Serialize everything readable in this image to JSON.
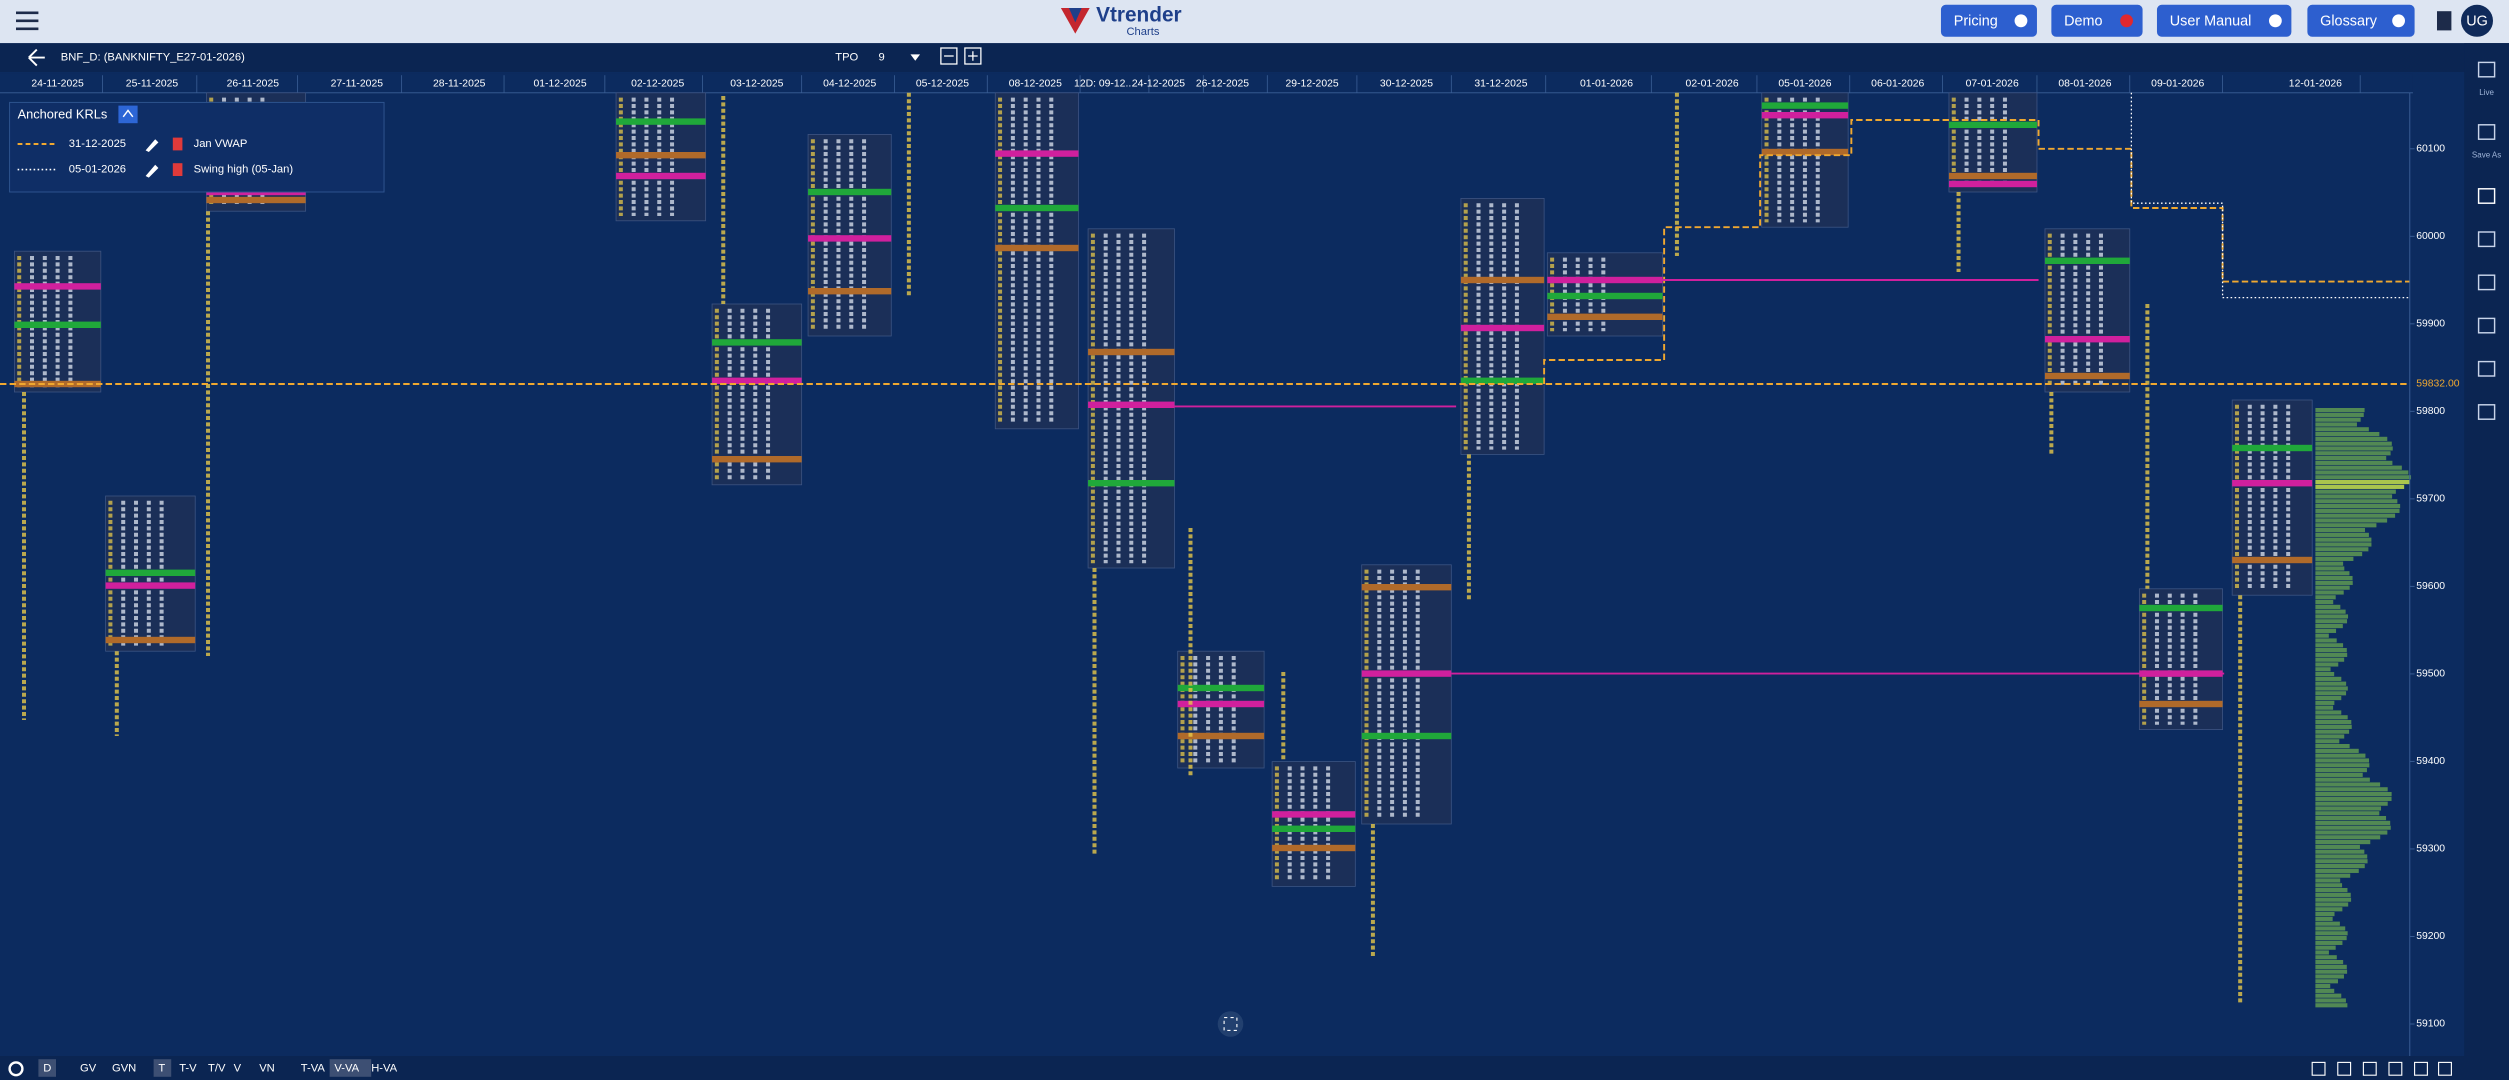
{
  "header": {
    "logo": "Vtrender",
    "logo_sub": "Charts",
    "buttons": [
      "Pricing",
      "Demo",
      "User Manual",
      "Glossary"
    ],
    "avatar": "UG"
  },
  "toolbar": {
    "symbol": "BNF_D: (BANKNIFTY_E27-01-2026)",
    "mode": "TPO",
    "size": "9"
  },
  "dates": [
    "24-11-2025",
    "25-11-2025",
    "26-11-2025",
    "27-11-2025",
    "28-11-2025",
    "01-12-2025",
    "02-12-2025",
    "03-12-2025",
    "04-12-2025",
    "05-12-2025",
    "08-12-2025",
    "12D: 09-12...",
    "24-12-2025",
    "26-12-2025",
    "29-12-2025",
    "30-12-2025",
    "31-12-2025",
    "01-01-2026",
    "02-01-2026",
    "05-01-2026",
    "06-01-2026",
    "07-01-2026",
    "08-01-2026",
    "09-01-2026",
    "12-01-2026"
  ],
  "price_axis": {
    "ticks": [
      60100,
      60000,
      59900,
      59800,
      59700,
      59600,
      59500,
      59400,
      59300,
      59200,
      59100
    ],
    "current": "59832.00"
  },
  "krl_panel": {
    "title": "Anchored KRLs",
    "entries": [
      {
        "date": "31-12-2025",
        "label": "Jan VWAP"
      },
      {
        "date": "05-01-2026",
        "label": "Swing high (05-Jan)"
      }
    ]
  },
  "bottom_bar": [
    "D",
    "GV",
    "GVN",
    "T",
    "T-V",
    "T/V",
    "V",
    "VN",
    "T-VA",
    "V-VA",
    "H-VA"
  ],
  "sidebar": [
    "Live",
    "Save As"
  ]
}
